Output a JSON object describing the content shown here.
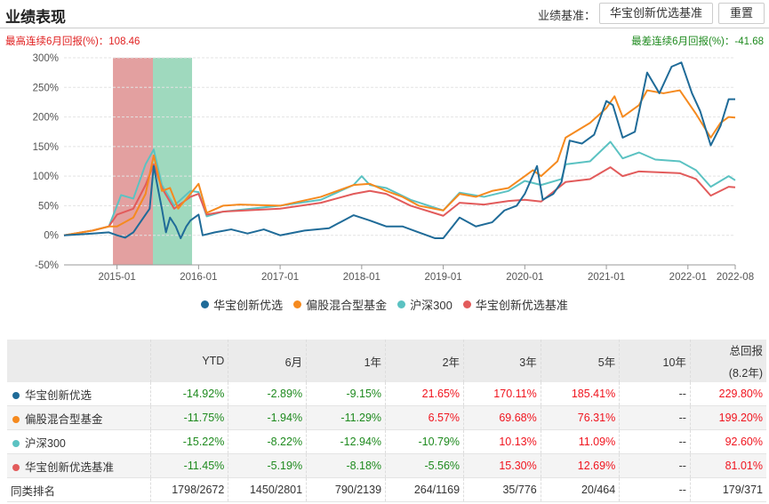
{
  "header": {
    "title": "业绩表现",
    "benchmark_label": "业绩基准：",
    "benchmark_button": "华宝创新优选基准",
    "reset_button": "重置"
  },
  "stats": {
    "max_6m": "最高连续6月回报(%)：108.46",
    "min_6m": "最差连续6月回报(%)：-41.68"
  },
  "chart_data": {
    "type": "line",
    "title": "业绩表现",
    "xlabel": "",
    "ylabel": "",
    "xlim": [
      2014.35,
      2022.58
    ],
    "ylim": [
      -50,
      300
    ],
    "yticks": [
      -50,
      0,
      50,
      100,
      150,
      200,
      250,
      300
    ],
    "ytick_labels": [
      "-50%",
      "0%",
      "50%",
      "100%",
      "150%",
      "200%",
      "250%",
      "300%"
    ],
    "xticks": [
      2015.0,
      2016.0,
      2017.0,
      2018.0,
      2019.0,
      2020.0,
      2021.0,
      2022.0,
      2022.58
    ],
    "xtick_labels": [
      "2015-01",
      "2016-01",
      "2017-01",
      "2018-01",
      "2019-01",
      "2020-01",
      "2021-01",
      "2022-01",
      "2022-08"
    ],
    "bands": [
      {
        "name": "max-6m-period",
        "from": 2014.95,
        "to": 2015.44,
        "color": "#d98080"
      },
      {
        "name": "min-6m-period",
        "from": 2015.44,
        "to": 2015.92,
        "color": "#7fcca8"
      }
    ],
    "legend_position": "bottom",
    "series": [
      {
        "name": "华宝创新优选",
        "color": "#1f6b98",
        "points": [
          [
            2014.35,
            0
          ],
          [
            2014.7,
            3
          ],
          [
            2014.9,
            5
          ],
          [
            2015.0,
            0
          ],
          [
            2015.1,
            -4
          ],
          [
            2015.2,
            5
          ],
          [
            2015.3,
            25
          ],
          [
            2015.4,
            45
          ],
          [
            2015.45,
            117
          ],
          [
            2015.5,
            80
          ],
          [
            2015.55,
            45
          ],
          [
            2015.6,
            5
          ],
          [
            2015.65,
            30
          ],
          [
            2015.72,
            15
          ],
          [
            2015.78,
            -5
          ],
          [
            2015.85,
            15
          ],
          [
            2015.9,
            25
          ],
          [
            2016.0,
            35
          ],
          [
            2016.05,
            0
          ],
          [
            2016.2,
            5
          ],
          [
            2016.4,
            10
          ],
          [
            2016.6,
            3
          ],
          [
            2016.8,
            10
          ],
          [
            2017.0,
            0
          ],
          [
            2017.3,
            8
          ],
          [
            2017.6,
            12
          ],
          [
            2017.9,
            34
          ],
          [
            2018.1,
            25
          ],
          [
            2018.3,
            15
          ],
          [
            2018.5,
            15
          ],
          [
            2018.7,
            5
          ],
          [
            2018.9,
            -5
          ],
          [
            2019.0,
            -5
          ],
          [
            2019.2,
            30
          ],
          [
            2019.4,
            15
          ],
          [
            2019.6,
            22
          ],
          [
            2019.75,
            42
          ],
          [
            2019.9,
            50
          ],
          [
            2020.0,
            70
          ],
          [
            2020.15,
            117
          ],
          [
            2020.22,
            60
          ],
          [
            2020.35,
            70
          ],
          [
            2020.45,
            90
          ],
          [
            2020.55,
            160
          ],
          [
            2020.7,
            155
          ],
          [
            2020.85,
            170
          ],
          [
            2021.0,
            227
          ],
          [
            2021.08,
            220
          ],
          [
            2021.2,
            165
          ],
          [
            2021.35,
            175
          ],
          [
            2021.5,
            275
          ],
          [
            2021.65,
            240
          ],
          [
            2021.8,
            285
          ],
          [
            2021.92,
            292
          ],
          [
            2022.05,
            240
          ],
          [
            2022.15,
            210
          ],
          [
            2022.28,
            152
          ],
          [
            2022.4,
            185
          ],
          [
            2022.5,
            230
          ],
          [
            2022.58,
            230
          ]
        ]
      },
      {
        "name": "偏股混合型基金",
        "color": "#f58a1f",
        "points": [
          [
            2014.35,
            0
          ],
          [
            2014.7,
            8
          ],
          [
            2014.9,
            15
          ],
          [
            2015.0,
            15
          ],
          [
            2015.2,
            30
          ],
          [
            2015.35,
            70
          ],
          [
            2015.45,
            135
          ],
          [
            2015.55,
            75
          ],
          [
            2015.65,
            80
          ],
          [
            2015.75,
            45
          ],
          [
            2015.9,
            70
          ],
          [
            2016.0,
            87
          ],
          [
            2016.1,
            38
          ],
          [
            2016.3,
            50
          ],
          [
            2016.5,
            52
          ],
          [
            2017.0,
            50
          ],
          [
            2017.5,
            65
          ],
          [
            2017.9,
            85
          ],
          [
            2018.1,
            87
          ],
          [
            2018.3,
            75
          ],
          [
            2018.5,
            65
          ],
          [
            2018.7,
            50
          ],
          [
            2019.0,
            42
          ],
          [
            2019.2,
            70
          ],
          [
            2019.4,
            65
          ],
          [
            2019.6,
            75
          ],
          [
            2019.8,
            80
          ],
          [
            2020.0,
            100
          ],
          [
            2020.1,
            110
          ],
          [
            2020.2,
            100
          ],
          [
            2020.4,
            125
          ],
          [
            2020.5,
            165
          ],
          [
            2020.8,
            190
          ],
          [
            2021.0,
            215
          ],
          [
            2021.1,
            235
          ],
          [
            2021.2,
            200
          ],
          [
            2021.4,
            220
          ],
          [
            2021.5,
            245
          ],
          [
            2021.7,
            240
          ],
          [
            2021.9,
            245
          ],
          [
            2022.1,
            205
          ],
          [
            2022.28,
            165
          ],
          [
            2022.4,
            190
          ],
          [
            2022.5,
            200
          ],
          [
            2022.58,
            199
          ]
        ]
      },
      {
        "name": "沪深300",
        "color": "#5bc2c2",
        "points": [
          [
            2014.35,
            0
          ],
          [
            2014.7,
            8
          ],
          [
            2014.9,
            15
          ],
          [
            2015.0,
            50
          ],
          [
            2015.05,
            68
          ],
          [
            2015.2,
            62
          ],
          [
            2015.35,
            120
          ],
          [
            2015.45,
            145
          ],
          [
            2015.55,
            85
          ],
          [
            2015.7,
            50
          ],
          [
            2015.9,
            75
          ],
          [
            2016.0,
            73
          ],
          [
            2016.1,
            32
          ],
          [
            2016.3,
            40
          ],
          [
            2017.0,
            50
          ],
          [
            2017.5,
            60
          ],
          [
            2017.9,
            85
          ],
          [
            2018.0,
            100
          ],
          [
            2018.1,
            85
          ],
          [
            2018.3,
            80
          ],
          [
            2018.6,
            60
          ],
          [
            2019.0,
            42
          ],
          [
            2019.2,
            72
          ],
          [
            2019.5,
            65
          ],
          [
            2019.8,
            75
          ],
          [
            2020.0,
            92
          ],
          [
            2020.2,
            85
          ],
          [
            2020.45,
            95
          ],
          [
            2020.5,
            120
          ],
          [
            2020.8,
            125
          ],
          [
            2021.05,
            158
          ],
          [
            2021.2,
            130
          ],
          [
            2021.4,
            140
          ],
          [
            2021.6,
            128
          ],
          [
            2021.9,
            125
          ],
          [
            2022.1,
            110
          ],
          [
            2022.28,
            82
          ],
          [
            2022.5,
            100
          ],
          [
            2022.58,
            93
          ]
        ]
      },
      {
        "name": "华宝创新优选基准",
        "color": "#e25b5b",
        "points": [
          [
            2014.35,
            0
          ],
          [
            2014.7,
            8
          ],
          [
            2014.9,
            15
          ],
          [
            2015.0,
            35
          ],
          [
            2015.2,
            45
          ],
          [
            2015.35,
            85
          ],
          [
            2015.45,
            120
          ],
          [
            2015.55,
            80
          ],
          [
            2015.7,
            45
          ],
          [
            2015.9,
            65
          ],
          [
            2016.0,
            70
          ],
          [
            2016.1,
            35
          ],
          [
            2016.3,
            40
          ],
          [
            2017.0,
            45
          ],
          [
            2017.5,
            55
          ],
          [
            2017.9,
            70
          ],
          [
            2018.1,
            75
          ],
          [
            2018.3,
            70
          ],
          [
            2018.6,
            50
          ],
          [
            2019.0,
            33
          ],
          [
            2019.2,
            55
          ],
          [
            2019.5,
            52
          ],
          [
            2019.8,
            58
          ],
          [
            2020.0,
            60
          ],
          [
            2020.2,
            57
          ],
          [
            2020.5,
            90
          ],
          [
            2020.8,
            95
          ],
          [
            2021.05,
            115
          ],
          [
            2021.2,
            100
          ],
          [
            2021.4,
            108
          ],
          [
            2021.9,
            105
          ],
          [
            2022.1,
            95
          ],
          [
            2022.28,
            67
          ],
          [
            2022.5,
            82
          ],
          [
            2022.58,
            81
          ]
        ]
      }
    ]
  },
  "table": {
    "headers": [
      "",
      "YTD",
      "6月",
      "1年",
      "2年",
      "3年",
      "5年",
      "10年",
      "总回报",
      "(8.2年)"
    ],
    "rows": [
      {
        "name": "华宝创新优选",
        "color": "#1f6b98",
        "values": [
          "-14.92%",
          "-2.89%",
          "-9.15%",
          "21.65%",
          "170.11%",
          "185.41%",
          "--",
          "229.80%"
        ]
      },
      {
        "name": "偏股混合型基金",
        "color": "#f58a1f",
        "values": [
          "-11.75%",
          "-1.94%",
          "-11.29%",
          "6.57%",
          "69.68%",
          "76.31%",
          "--",
          "199.20%"
        ]
      },
      {
        "name": "沪深300",
        "color": "#5bc2c2",
        "values": [
          "-15.22%",
          "-8.22%",
          "-12.94%",
          "-10.79%",
          "10.13%",
          "11.09%",
          "--",
          "92.60%"
        ]
      },
      {
        "name": "华宝创新优选基准",
        "color": "#e25b5b",
        "values": [
          "-11.45%",
          "-5.19%",
          "-8.18%",
          "-5.56%",
          "15.30%",
          "12.69%",
          "--",
          "81.01%"
        ]
      }
    ],
    "rank": {
      "name": "同类排名",
      "values": [
        "1798/2672",
        "1450/2801",
        "790/2139",
        "264/1169",
        "35/776",
        "20/464",
        "--",
        "179/371"
      ]
    }
  }
}
